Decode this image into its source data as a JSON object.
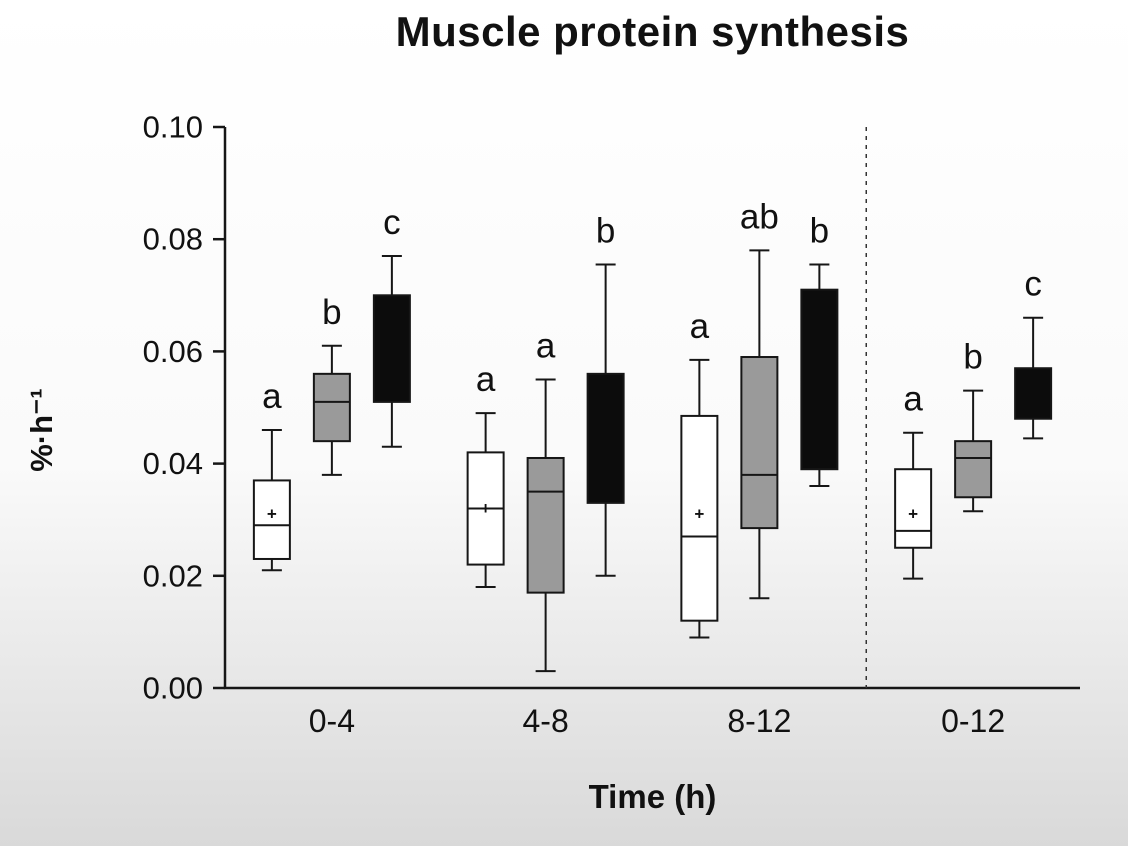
{
  "chart_data": {
    "type": "boxplot",
    "title": "Muscle protein synthesis",
    "xlabel": "Time (h)",
    "ylabel": "%·h⁻¹",
    "ylim": [
      0.0,
      0.1
    ],
    "yticks": [
      0.0,
      0.02,
      0.04,
      0.06,
      0.08,
      0.1
    ],
    "grid": false,
    "legend_position": "none",
    "separator_before_group_index": 3,
    "series_order": [
      "white",
      "gray",
      "black"
    ],
    "colors": {
      "white_box_fill": "#ffffff",
      "gray_box_fill": "#9a9a9a",
      "black_box_fill": "#0c0c0c",
      "stroke": "#161616",
      "text": "#111111"
    },
    "groups": [
      {
        "label": "0-4",
        "boxes": [
          {
            "series": "white",
            "letter": "a",
            "whisker_low": 0.021,
            "q1": 0.023,
            "median": 0.029,
            "q3": 0.037,
            "whisker_high": 0.046,
            "mean": 0.031
          },
          {
            "series": "gray",
            "letter": "b",
            "whisker_low": 0.038,
            "q1": 0.044,
            "median": 0.051,
            "q3": 0.056,
            "whisker_high": 0.061,
            "mean": null
          },
          {
            "series": "black",
            "letter": "c",
            "whisker_low": 0.043,
            "q1": 0.051,
            "median": null,
            "q3": 0.07,
            "whisker_high": 0.077,
            "mean": null
          }
        ]
      },
      {
        "label": "4-8",
        "boxes": [
          {
            "series": "white",
            "letter": "a",
            "whisker_low": 0.018,
            "q1": 0.022,
            "median": 0.032,
            "q3": 0.042,
            "whisker_high": 0.049,
            "mean": 0.032
          },
          {
            "series": "gray",
            "letter": "a",
            "whisker_low": 0.003,
            "q1": 0.017,
            "median": 0.035,
            "q3": 0.041,
            "whisker_high": 0.055,
            "mean": null
          },
          {
            "series": "black",
            "letter": "b",
            "whisker_low": 0.02,
            "q1": 0.033,
            "median": null,
            "q3": 0.056,
            "whisker_high": 0.0755,
            "mean": null
          }
        ]
      },
      {
        "label": "8-12",
        "boxes": [
          {
            "series": "white",
            "letter": "a",
            "whisker_low": 0.009,
            "q1": 0.012,
            "median": 0.027,
            "q3": 0.0485,
            "whisker_high": 0.0585,
            "mean": 0.031
          },
          {
            "series": "gray",
            "letter": "ab",
            "whisker_low": 0.016,
            "q1": 0.0285,
            "median": 0.038,
            "q3": 0.059,
            "whisker_high": 0.078,
            "mean": null
          },
          {
            "series": "black",
            "letter": "b",
            "whisker_low": 0.036,
            "q1": 0.039,
            "median": null,
            "q3": 0.071,
            "whisker_high": 0.0755,
            "mean": null
          }
        ]
      },
      {
        "label": "0-12",
        "boxes": [
          {
            "series": "white",
            "letter": "a",
            "whisker_low": 0.0195,
            "q1": 0.025,
            "median": 0.028,
            "q3": 0.039,
            "whisker_high": 0.0455,
            "mean": 0.031
          },
          {
            "series": "gray",
            "letter": "b",
            "whisker_low": 0.0315,
            "q1": 0.034,
            "median": 0.041,
            "q3": 0.044,
            "whisker_high": 0.053,
            "mean": null
          },
          {
            "series": "black",
            "letter": "c",
            "whisker_low": 0.0445,
            "q1": 0.048,
            "median": null,
            "q3": 0.057,
            "whisker_high": 0.066,
            "mean": null
          }
        ]
      }
    ]
  }
}
